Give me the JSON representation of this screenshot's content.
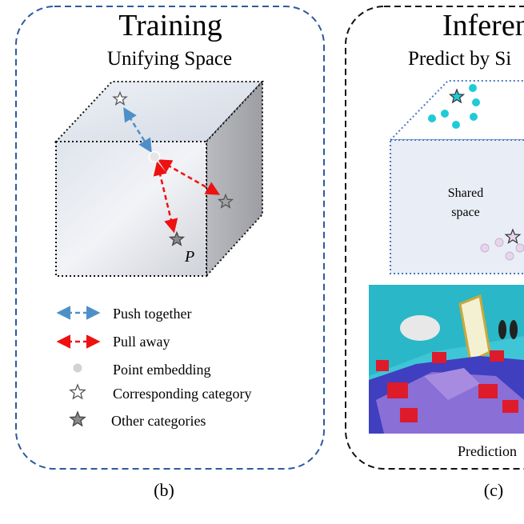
{
  "training": {
    "title": "Training",
    "subtitle": "Unifying Space",
    "point_label": "P",
    "caption": "(b)",
    "legend": [
      {
        "label": "Push together",
        "icon": "blue-dashed-double-arrow-icon"
      },
      {
        "label": "Pull away",
        "icon": "red-dashed-double-arrow-icon"
      },
      {
        "label": "Point embedding",
        "icon": "gray-dot-icon"
      },
      {
        "label": "Corresponding category",
        "icon": "white-star-icon"
      },
      {
        "label": "Other categories",
        "icon": "gray-star-icon"
      }
    ]
  },
  "inference": {
    "title": "Inferen",
    "subtitle": "Predict by Si",
    "shared_space_line1": "Shared",
    "shared_space_line2": "space",
    "prediction_label": "Prediction",
    "caption": "(c)"
  },
  "colors": {
    "blue_border": "#2e5a9c",
    "push_arrow": "#4f8fc8",
    "pull_arrow": "#ee1111",
    "cyan_points": "#1ecbd6",
    "lavender_points": "#e6d6ec"
  }
}
